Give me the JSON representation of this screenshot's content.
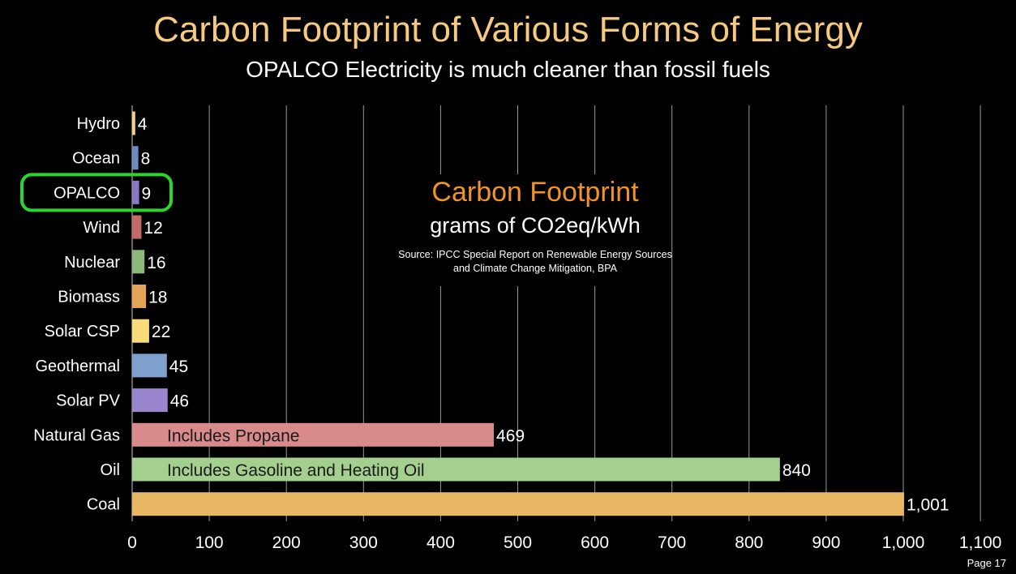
{
  "slide": {
    "title": "Carbon Footprint of Various Forms of Energy",
    "subtitle": "OPALCO Electricity is much cleaner than fossil fuels",
    "page": "Page 17"
  },
  "legend": {
    "title": "Carbon Footprint",
    "unit": "grams of CO2eq/kWh",
    "source": "Source: IPCC Special Report on Renewable Energy Sources and Climate Change Mitigation, BPA"
  },
  "chart_data": {
    "type": "bar",
    "orientation": "horizontal",
    "categories": [
      "Hydro",
      "Ocean",
      "OPALCO",
      "Wind",
      "Nuclear",
      "Biomass",
      "Solar CSP",
      "Geothermal",
      "Solar PV",
      "Natural Gas",
      "Oil",
      "Coal"
    ],
    "values": [
      4,
      8,
      9,
      12,
      16,
      18,
      22,
      45,
      46,
      469,
      840,
      1001
    ],
    "data_labels": [
      "4",
      "8",
      "9",
      "12",
      "16",
      "18",
      "22",
      "45",
      "46",
      "469",
      "840",
      "1,001"
    ],
    "bar_colors": [
      "#f4d37a",
      "#6c8bbf",
      "#8a78c4",
      "#c46a66",
      "#8eb879",
      "#e3a457",
      "#f7dc7a",
      "#7f9fcf",
      "#9a86cc",
      "#d98a8a",
      "#a4cf8e",
      "#e8b764"
    ],
    "bar_annotations": {
      "Natural Gas": "Includes Propane",
      "Oil": "Includes Gasoline and Heating Oil"
    },
    "highlighted_category": "OPALCO",
    "highlight_color": "#29d629",
    "xlim": [
      0,
      1100
    ],
    "xticks": [
      0,
      100,
      200,
      300,
      400,
      500,
      600,
      700,
      800,
      900,
      1000,
      1100
    ],
    "xtick_labels": [
      "0",
      "100",
      "200",
      "300",
      "400",
      "500",
      "600",
      "700",
      "800",
      "900",
      "1,000",
      "1,100"
    ],
    "grid": true,
    "title": "Carbon Footprint",
    "xlabel": "grams of CO2eq/kWh",
    "ylabel": ""
  }
}
